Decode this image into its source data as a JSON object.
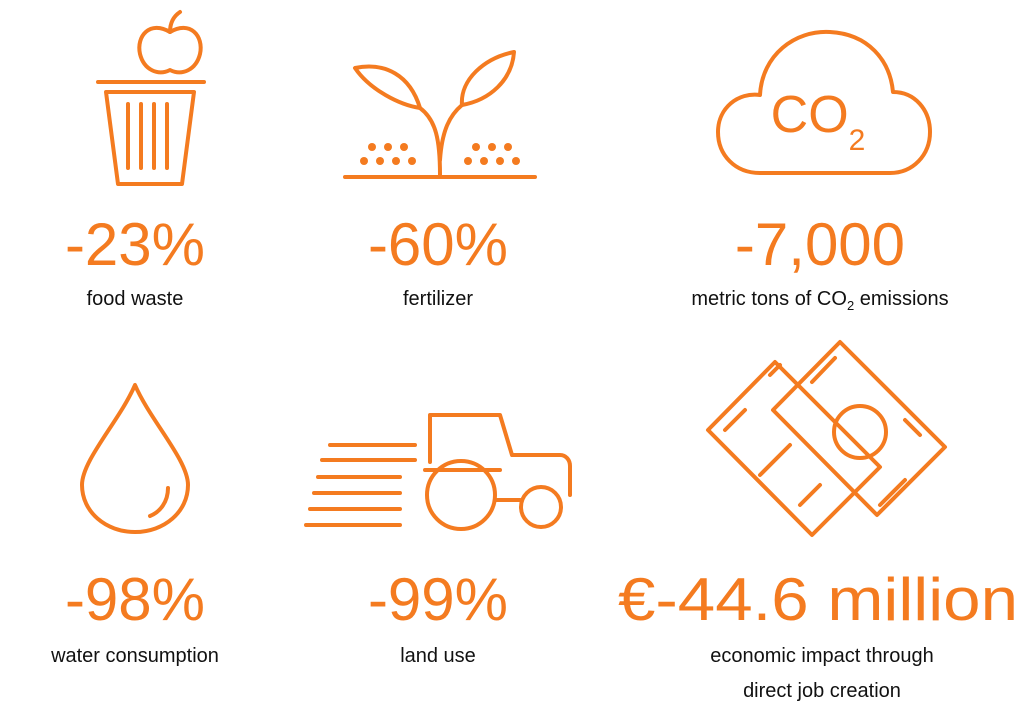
{
  "items": [
    {
      "value": "-23%",
      "label": "food waste"
    },
    {
      "value": "-60%",
      "label": "fertilizer"
    },
    {
      "value": "-7,000",
      "icon_text": {
        "main": "CO",
        "sub": "2"
      },
      "label_parts": [
        "metric tons of CO",
        "2",
        " emissions"
      ]
    },
    {
      "value": "-98%",
      "label": "water consumption"
    },
    {
      "value": "-99%",
      "label": "land use"
    },
    {
      "value": "€-44.6 million",
      "label_lines": [
        "economic impact through",
        "direct job creation"
      ]
    }
  ]
}
